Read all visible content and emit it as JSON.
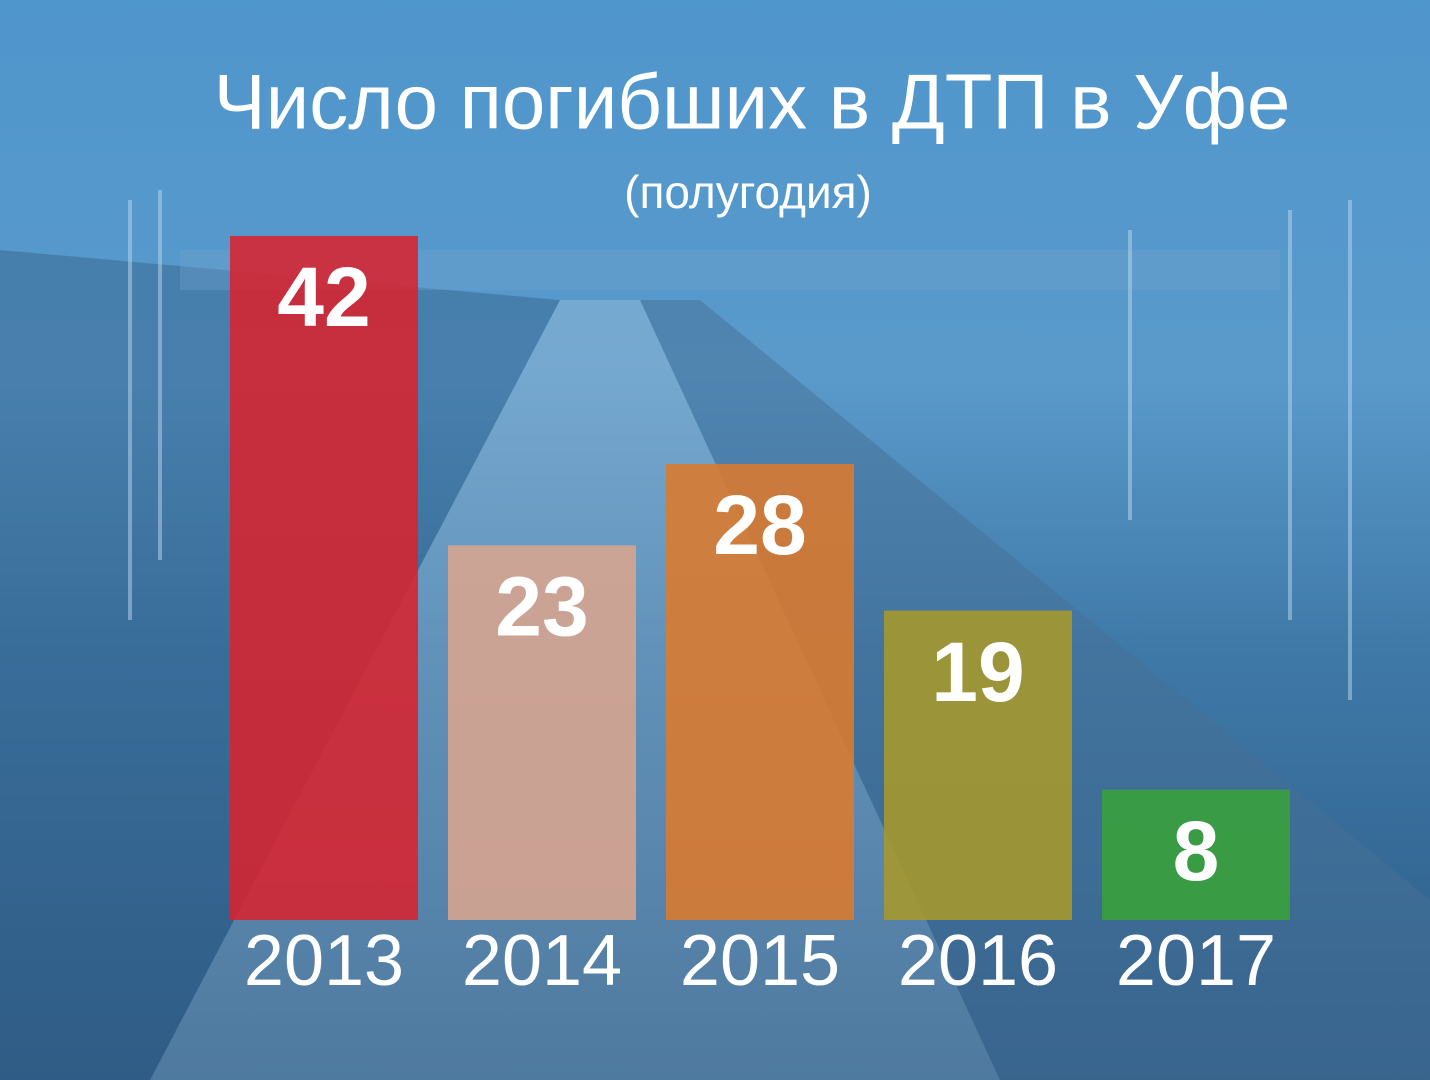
{
  "chart_data": {
    "type": "bar",
    "title": "Число погибших в ДТП в Уфе",
    "subtitle": "(полугодия)",
    "categories": [
      "2013",
      "2014",
      "2015",
      "2016",
      "2017"
    ],
    "values": [
      42,
      23,
      28,
      19,
      8
    ],
    "colors": [
      "#d8232f",
      "#d9a58f",
      "#dc7a2c",
      "#a8982a",
      "#3aa23a"
    ]
  }
}
